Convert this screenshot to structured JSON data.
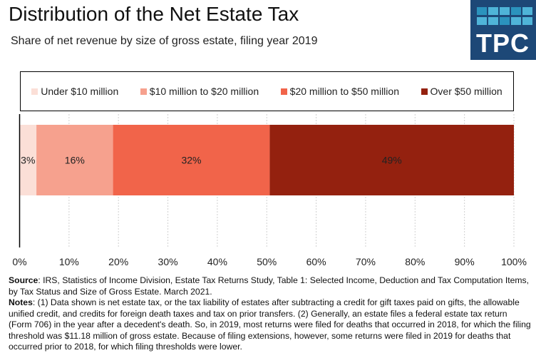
{
  "header": {
    "title": "Distribution of the Net Estate Tax",
    "subtitle": "Share of net revenue by size of gross estate, filing year 2019",
    "logo_text": "TPC"
  },
  "colors": {
    "logo_bg": "#1d4877",
    "logo_squares": [
      "#4fb4d8",
      "#2b93bd"
    ]
  },
  "chart_data": {
    "type": "bar",
    "orientation": "horizontal",
    "stacked": true,
    "title": "Distribution of the Net Estate Tax",
    "subtitle": "Share of net revenue by size of gross estate, filing year 2019",
    "legend_position": "top",
    "series": [
      {
        "name": "Under $10 million",
        "value": 3.4,
        "label": "3%",
        "color": "#fbdfd7"
      },
      {
        "name": "$10 million to $20 million",
        "value": 15.5,
        "label": "16%",
        "color": "#f6a18e"
      },
      {
        "name": "$20 million to $50 million",
        "value": 31.7,
        "label": "32%",
        "color": "#f1644a"
      },
      {
        "name": "Over $50 million",
        "value": 49.4,
        "label": "49%",
        "color": "#94210f"
      }
    ],
    "xlim": [
      0,
      100
    ],
    "xticks": [
      "0%",
      "10%",
      "20%",
      "30%",
      "40%",
      "50%",
      "60%",
      "70%",
      "80%",
      "90%",
      "100%"
    ],
    "grid": true
  },
  "footer": {
    "source_label": "Source",
    "source_text": ": IRS, Statistics of Income Division, Estate Tax Returns Study, Table 1: Selected Income, Deduction and Tax Computation Items, by Tax Status and Size of Gross Estate. March 2021.",
    "notes_label": "Notes",
    "notes_text": ": (1) Data shown is net estate tax, or the tax liability of estates after subtracting a credit for gift taxes paid on gifts, the allowable unified credit, and credits for foreign death taxes and tax on prior transfers. (2) Generally, an estate files a federal estate tax return (Form 706) in the year after a decedent's death. So, in 2019, most returns were filed for deaths that occurred in 2018, for which the filing threshold was $11.18 million of gross estate. Because of filing extensions, however, some returns were filed in 2019 for deaths that occurred prior to 2018, for which filing thresholds were lower."
  }
}
